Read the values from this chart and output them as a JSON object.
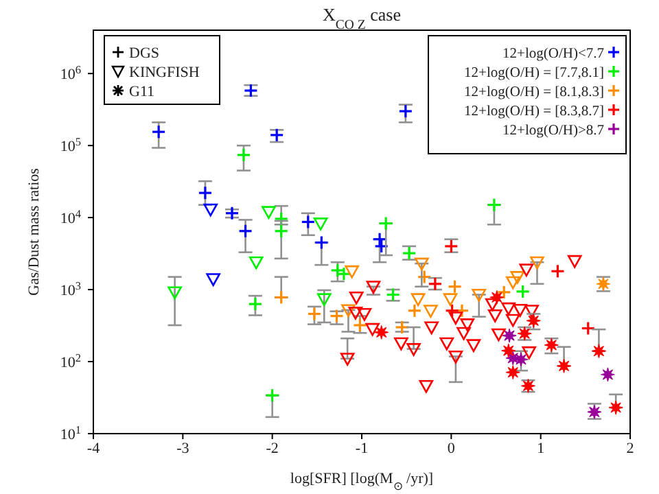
{
  "chart_data": {
    "type": "scatter",
    "title": "X$_{CO Z}$ case",
    "xlabel": "log[SFR] [log(M$_{⊙}$/yr)]",
    "ylabel": "Gas/Dust mass ratios",
    "xlim": [
      -4,
      2
    ],
    "xticks": [
      -4,
      -3,
      -2,
      -1,
      0,
      1,
      2
    ],
    "ylim": [
      10,
      4000000
    ],
    "yticks": [
      {
        "value": 10,
        "label": "10$^{1}$"
      },
      {
        "value": 100,
        "label": "10$^{2}$"
      },
      {
        "value": 1000,
        "label": "10$^{3}$"
      },
      {
        "value": 10000,
        "label": "10$^{4}$"
      },
      {
        "value": 100000,
        "label": "10$^{5}$"
      },
      {
        "value": 1000000,
        "label": "10$^{6}$"
      }
    ],
    "log": "y",
    "legend": "top right",
    "annotations": [
      "DGS",
      "KINGFISH",
      "G11"
    ],
    "series": [
      {
        "name": "12+log(O/H)<7.7",
        "color": "#0000ff",
        "marker": "cross",
        "x": [
          -3.27,
          -2.75,
          -2.45,
          -2.3,
          -2.24,
          -1.95,
          -1.6,
          -1.45,
          -0.8,
          -0.78,
          -0.51
        ],
        "values": [
          155000,
          22000,
          11500,
          6500,
          580000,
          140000,
          8700,
          4500,
          5000,
          4000,
          300000
        ],
        "errors": [
          [
            93000,
            210000
          ],
          [
            15000,
            32000
          ],
          [
            10000,
            13000
          ],
          [
            3300,
            9300
          ],
          [
            490000,
            690000
          ],
          [
            112000,
            165000
          ],
          [
            5700,
            11500
          ],
          [
            2200,
            4500
          ],
          [
            2400,
            5000
          ],
          null,
          [
            210000,
            370000
          ]
        ]
      },
      {
        "name": "12+log(O/H) = [7.7,8.1]",
        "color": "#00ee00",
        "marker": "cross",
        "x": [
          -2.32,
          -2.19,
          -1.9,
          -1.9,
          -2.0,
          -1.27,
          -1.2,
          -0.73,
          -0.65,
          -0.47,
          0.48,
          0.8
        ],
        "values": [
          74000,
          630,
          9600,
          6500,
          34,
          1850,
          1650,
          8300,
          850,
          3200,
          15000,
          940
        ],
        "errors": [
          [
            45000,
            100000
          ],
          [
            440,
            820
          ],
          [
            8000,
            14500
          ],
          [
            2700,
            9000
          ],
          [
            17,
            34
          ],
          [
            1300,
            2400
          ],
          null,
          [
            3000,
            8300
          ],
          [
            700,
            1000
          ],
          [
            2600,
            4000
          ],
          [
            8000,
            15000
          ],
          null
        ]
      },
      {
        "name": "12+log(O/H) = [8.1,8.3]",
        "color": "#ff8c00",
        "marker": "cross",
        "x": [
          -1.9,
          -1.53,
          -1.28,
          -1.02,
          -0.55,
          -0.41,
          -0.3,
          0.04,
          0.12,
          0.59
        ],
        "values": [
          780,
          460,
          430,
          320,
          300,
          510,
          1500,
          1100,
          510,
          920
        ],
        "errors": [
          [
            780,
            1500
          ],
          [
            330,
            580
          ],
          [
            330,
            500
          ],
          [
            250,
            430
          ],
          [
            260,
            350
          ],
          null,
          null,
          null,
          null,
          null
        ]
      },
      {
        "name": "12+log(O/H) = [8.3,8.7]",
        "color": "#ff0000",
        "marker": "cross",
        "x": [
          -0.18,
          0.0,
          0.01,
          1.19,
          1.53
        ],
        "values": [
          1200,
          4000,
          510,
          1800,
          290
        ],
        "errors": [
          [
            1000,
            1450
          ],
          [
            3300,
            5000
          ],
          null,
          null,
          null
        ]
      },
      {
        "name": "12+log(O/H)>8.7",
        "color": "#990099",
        "marker": "star",
        "x": [
          0.65,
          0.69,
          0.78,
          1.75,
          1.6
        ],
        "values": [
          230,
          112,
          107,
          66,
          20
        ],
        "errors": [
          null,
          null,
          [
            75,
            140
          ],
          null,
          [
            16,
            26
          ]
        ]
      },
      {
        "color": "#0000ff",
        "marker": "triangle",
        "x": [
          -2.69,
          -2.66
        ],
        "values": [
          13000,
          1400
        ]
      },
      {
        "color": "#00ee00",
        "marker": "triangle",
        "x": [
          -3.09,
          -2.18,
          -2.04,
          -1.46,
          -1.42
        ],
        "values": [
          920,
          2400,
          12000,
          8300,
          740
        ],
        "errors": [
          [
            320,
            1500
          ],
          null,
          null,
          null,
          [
            350,
            980
          ]
        ]
      },
      {
        "color": "#ff8c00",
        "marker": "triangle",
        "x": [
          -1.11,
          -1.15,
          -0.33,
          -0.37,
          -0.23,
          -0.01,
          0.31,
          0.69,
          0.74,
          0.96
        ],
        "values": [
          1800,
          520,
          2300,
          740,
          510,
          740,
          850,
          1270,
          1500,
          2400
        ],
        "errors": [
          null,
          [
            260,
            520
          ],
          [
            1100,
            2300
          ],
          null,
          null,
          null,
          [
            420,
            850
          ],
          null,
          null,
          [
            1200,
            2400
          ]
        ]
      },
      {
        "color": "#ff0000",
        "marker": "triangle",
        "x": [
          -1.16,
          -1.06,
          -0.87,
          -1.07,
          -0.97,
          -0.88,
          -0.56,
          -0.42,
          -0.28,
          -0.22,
          -0.05,
          0.05,
          0.05,
          0.18,
          0.14,
          0.25,
          0.46,
          0.49,
          0.53,
          0.64,
          0.77,
          0.9,
          0.69,
          0.84,
          1.38,
          0.87
        ],
        "values": [
          110,
          780,
          1100,
          480,
          460,
          285,
          180,
          150,
          46,
          300,
          180,
          118,
          410,
          330,
          250,
          170,
          630,
          440,
          240,
          550,
          525,
          510,
          380,
          1900,
          2500,
          135
        ],
        "errors": [
          [
            110,
            210
          ],
          null,
          [
            850,
            1100
          ],
          null,
          null,
          null,
          null,
          [
            150,
            300
          ],
          null,
          null,
          null,
          [
            52,
            118
          ],
          null,
          null,
          null,
          null,
          null,
          null,
          null,
          null,
          null,
          null,
          null,
          null,
          null,
          null
        ]
      },
      {
        "color": "#ff0000",
        "marker": "star",
        "x": [
          -0.78,
          0.51,
          0.92,
          0.82,
          0.64,
          0.69,
          0.86,
          1.12,
          1.26,
          1.65,
          1.84
        ],
        "values": [
          255,
          780,
          370,
          245,
          142,
          71,
          46,
          170,
          87,
          140,
          23
        ],
        "errors": [
          null,
          null,
          [
            280,
            460
          ],
          [
            200,
            300
          ],
          null,
          null,
          [
            38,
            55
          ],
          [
            130,
            210
          ],
          [
            87,
            160
          ],
          [
            140,
            280
          ],
          [
            23,
            35
          ]
        ]
      },
      {
        "color": "#ff8c00",
        "marker": "star",
        "x": [
          1.7
        ],
        "values": [
          1200
        ],
        "errors": [
          [
            950,
            1500
          ]
        ]
      }
    ]
  }
}
